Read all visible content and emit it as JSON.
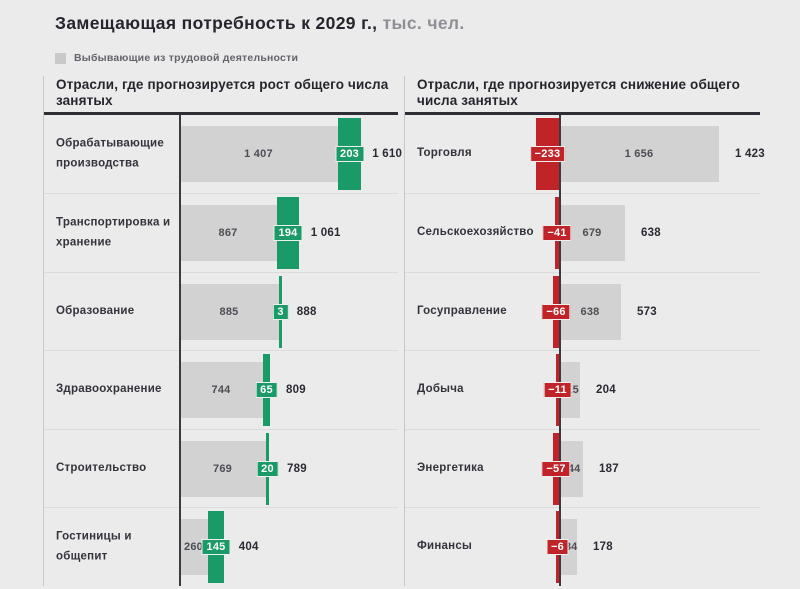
{
  "title": {
    "main": "Замещающая потребность к 2029 г.,",
    "suffix": " тыс. чел."
  },
  "legend": {
    "label": "Выбывающие из трудовой деятельности",
    "swatch_color": "#c9c9c9"
  },
  "colors": {
    "background": "#ebebeb",
    "base_bar": "#d2d2d2",
    "growth_accent": "#1a9a66",
    "decline_accent": "#c02428",
    "axis_line": "#3a3a40",
    "dark_text": "#25252e"
  },
  "chart_data": {
    "type": "bar",
    "orientation": "horizontal",
    "units": "тыс. чел.",
    "title": "Замещающая потребность к 2029 г., тыс. чел.",
    "legend_entries": [
      "Выбывающие из трудовой деятельности"
    ],
    "panels": [
      {
        "header": "Отрасли, где прогнозируется рост общего числа занятых",
        "direction": "growth",
        "accent": "#1a9a66",
        "rows": [
          {
            "label": "Обрабатывающие производства",
            "base": 1407,
            "base_label": "1 407",
            "delta": 203,
            "delta_label": "203",
            "total": 1610,
            "total_label": "1 610"
          },
          {
            "label": "Транспортировка и хранение",
            "base": 867,
            "base_label": "867",
            "delta": 194,
            "delta_label": "194",
            "total": 1061,
            "total_label": "1 061"
          },
          {
            "label": "Образование",
            "base": 885,
            "base_label": "885",
            "delta": 3,
            "delta_label": "3",
            "total": 888,
            "total_label": "888"
          },
          {
            "label": "Здравоохранение",
            "base": 744,
            "base_label": "744",
            "delta": 65,
            "delta_label": "65",
            "total": 809,
            "total_label": "809"
          },
          {
            "label": "Строительство",
            "base": 769,
            "base_label": "769",
            "delta": 20,
            "delta_label": "20",
            "total": 789,
            "total_label": "789"
          },
          {
            "label": "Гостиницы и общепит",
            "base": 260,
            "base_label": "260",
            "delta": 145,
            "delta_label": "145",
            "total": 404,
            "total_label": "404"
          }
        ]
      },
      {
        "header": "Отрасли, где прогнозируется снижение общего числа занятых",
        "direction": "decline",
        "accent": "#c02428",
        "rows": [
          {
            "label": "Торговля",
            "base": 1656,
            "base_label": "1 656",
            "delta": -233,
            "delta_label": "−233",
            "total": 1423,
            "total_label": "1 423"
          },
          {
            "label": "Сельскоехозяйство",
            "base": 679,
            "base_label": "679",
            "delta": -41,
            "delta_label": "−41",
            "total": 638,
            "total_label": "638"
          },
          {
            "label": "Госуправление",
            "base": 638,
            "base_label": "638",
            "delta": -66,
            "delta_label": "−66",
            "total": 573,
            "total_label": "573"
          },
          {
            "label": "Добыча",
            "base": 215,
            "base_label": "215",
            "delta": -11,
            "delta_label": "−11",
            "total": 204,
            "total_label": "204"
          },
          {
            "label": "Энергетика",
            "base": 244,
            "base_label": "244",
            "delta": -57,
            "delta_label": "−57",
            "total": 187,
            "total_label": "187"
          },
          {
            "label": "Финансы",
            "base": 184,
            "base_label": "184",
            "delta": -6,
            "delta_label": "−6",
            "total": 178,
            "total_label": "178"
          }
        ]
      }
    ]
  }
}
